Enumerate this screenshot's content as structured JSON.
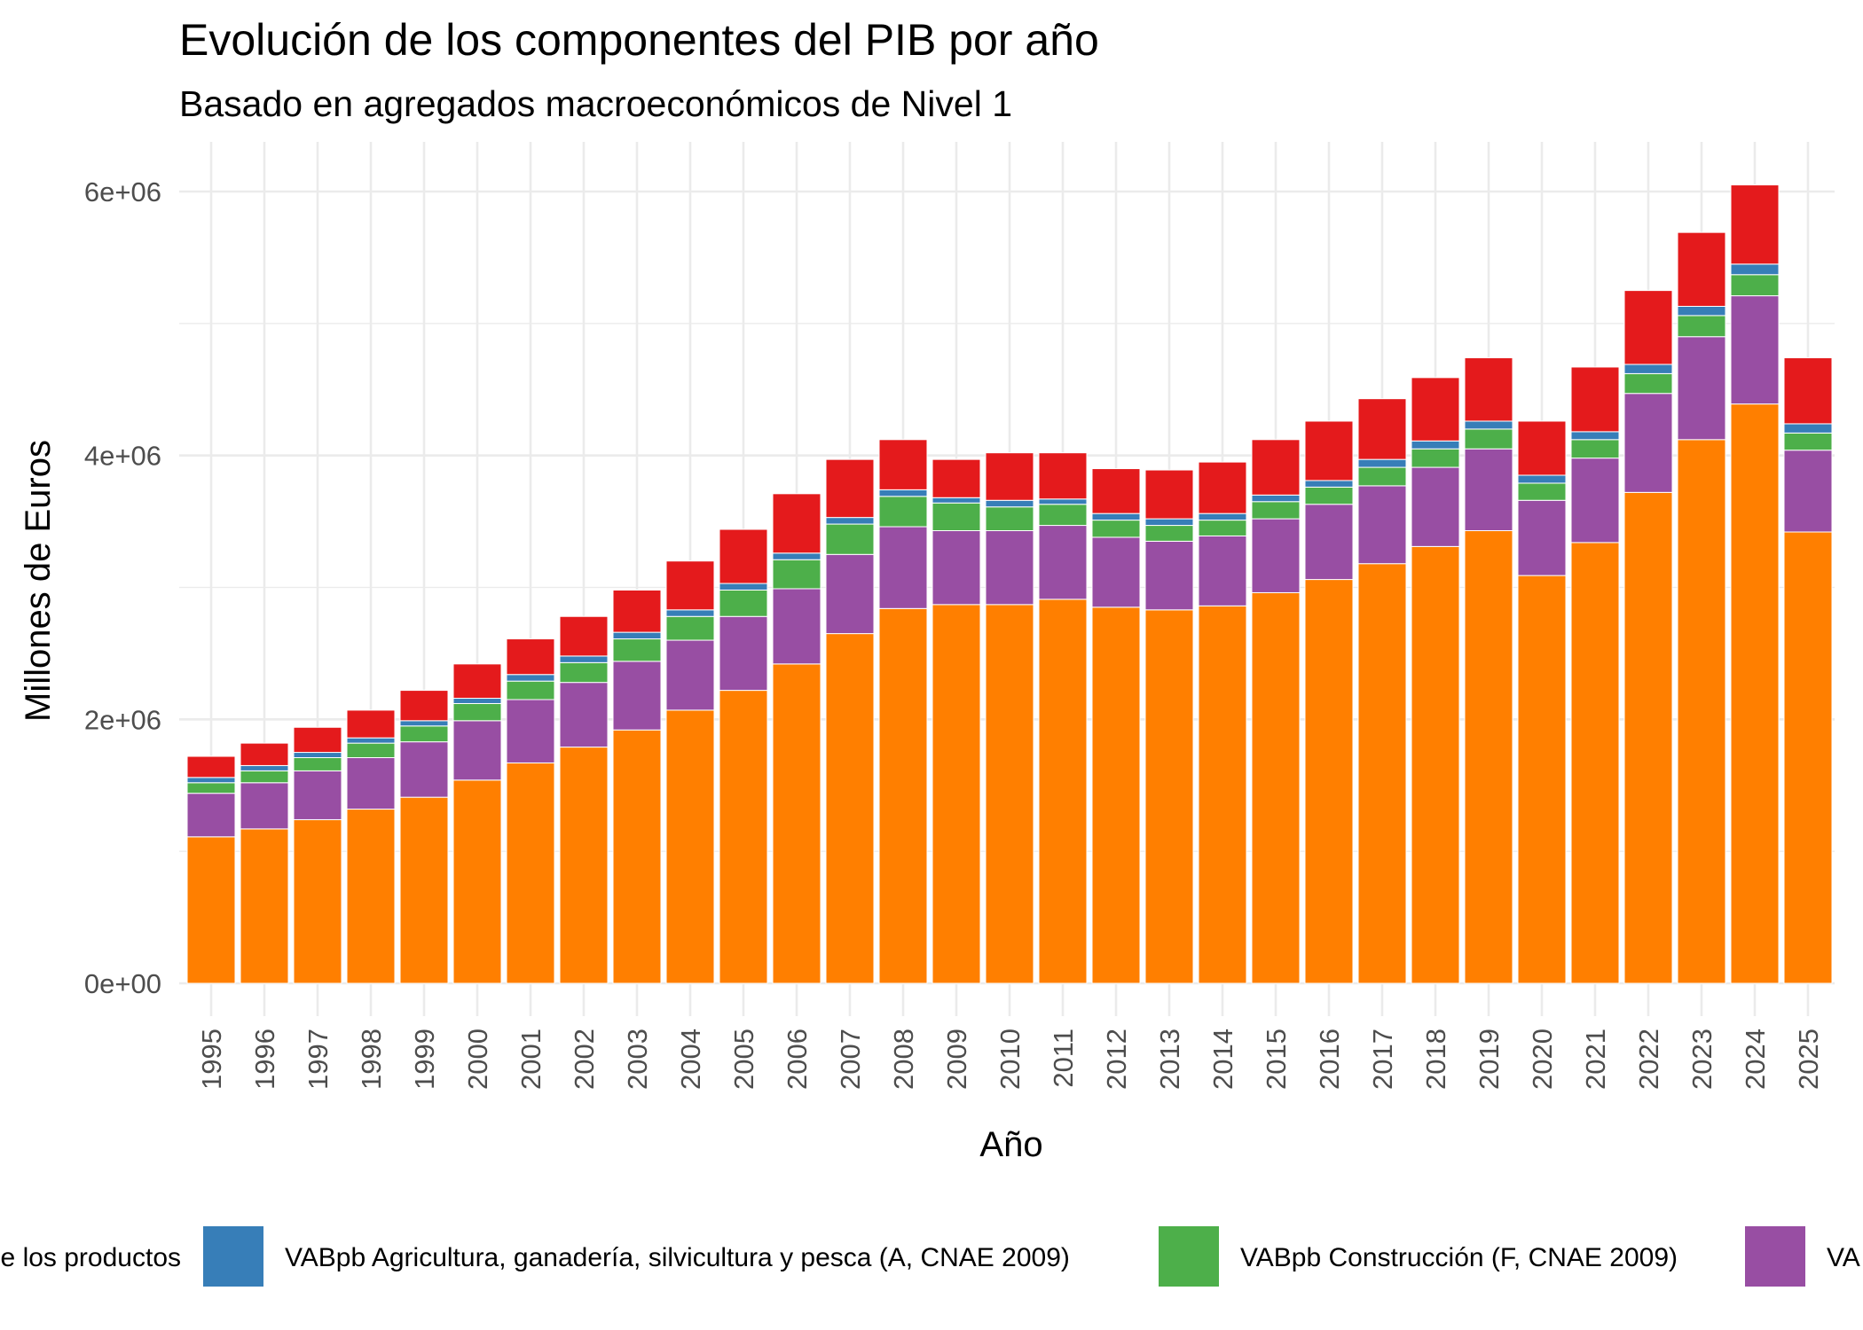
{
  "chart_data": {
    "type": "bar",
    "stacked": true,
    "title": "Evolución de los componentes del PIB por año",
    "subtitle": "Basado en agregados macroeconómicos de Nivel 1",
    "xlabel": "Año",
    "ylabel": "Millones de Euros",
    "ylim": [
      0,
      6300000
    ],
    "yticks": [
      0,
      2000000,
      4000000,
      6000000
    ],
    "ytick_labels": [
      "0e+00",
      "2e+06",
      "4e+06",
      "6e+06"
    ],
    "grid": true,
    "legend_position": "bottom",
    "categories": [
      "1995",
      "1996",
      "1997",
      "1998",
      "1999",
      "2000",
      "2001",
      "2002",
      "2003",
      "2004",
      "2005",
      "2006",
      "2007",
      "2008",
      "2009",
      "2010",
      "2011",
      "2012",
      "2013",
      "2014",
      "2015",
      "2016",
      "2017",
      "2018",
      "2019",
      "2020",
      "2021",
      "2022",
      "2023",
      "2024",
      "2025"
    ],
    "series": [
      {
        "name": "",
        "color": "#ff7f00",
        "values": [
          1110000,
          1170000,
          1240000,
          1320000,
          1410000,
          1540000,
          1670000,
          1790000,
          1920000,
          2070000,
          2220000,
          2420000,
          2650000,
          2840000,
          2870000,
          2870000,
          2910000,
          2850000,
          2830000,
          2860000,
          2960000,
          3060000,
          3180000,
          3310000,
          3430000,
          3090000,
          3340000,
          3720000,
          4120000,
          4390000,
          3420000
        ]
      },
      {
        "name": "",
        "color": "#984ea3",
        "values": [
          330000,
          350000,
          370000,
          390000,
          420000,
          450000,
          480000,
          490000,
          520000,
          530000,
          560000,
          570000,
          600000,
          620000,
          560000,
          560000,
          560000,
          530000,
          520000,
          530000,
          560000,
          570000,
          590000,
          600000,
          620000,
          570000,
          640000,
          750000,
          780000,
          820000,
          620000
        ]
      },
      {
        "name": "VABpb Construcción (F, CNAE 2009)",
        "color": "#4daf4a",
        "values": [
          80000,
          90000,
          100000,
          110000,
          120000,
          130000,
          140000,
          150000,
          170000,
          180000,
          200000,
          220000,
          230000,
          230000,
          210000,
          180000,
          160000,
          130000,
          120000,
          120000,
          130000,
          130000,
          140000,
          140000,
          150000,
          130000,
          140000,
          150000,
          160000,
          160000,
          130000
        ]
      },
      {
        "name": "VABpb Agricultura, ganadería, silvicultura y pesca (A, CNAE 2009)",
        "color": "#377eb8",
        "values": [
          40000,
          40000,
          40000,
          40000,
          40000,
          40000,
          50000,
          50000,
          50000,
          50000,
          50000,
          50000,
          50000,
          50000,
          40000,
          50000,
          40000,
          50000,
          50000,
          50000,
          50000,
          50000,
          60000,
          60000,
          60000,
          60000,
          60000,
          70000,
          70000,
          80000,
          70000
        ]
      },
      {
        "name": "",
        "color": "#e41a1c",
        "values": [
          160000,
          170000,
          190000,
          210000,
          230000,
          260000,
          270000,
          300000,
          320000,
          370000,
          410000,
          450000,
          440000,
          380000,
          290000,
          360000,
          350000,
          340000,
          370000,
          390000,
          420000,
          450000,
          460000,
          480000,
          480000,
          410000,
          490000,
          560000,
          560000,
          600000,
          500000
        ]
      }
    ],
    "legend_entries": [
      {
        "label": "e los productos",
        "color": null
      },
      {
        "label": "VABpb Agricultura, ganadería, silvicultura y pesca (A, CNAE 2009)",
        "color": "#377eb8"
      },
      {
        "label": "VABpb Construcción (F, CNAE 2009)",
        "color": "#4daf4a"
      },
      {
        "label": "VA",
        "color": "#984ea3"
      }
    ]
  }
}
